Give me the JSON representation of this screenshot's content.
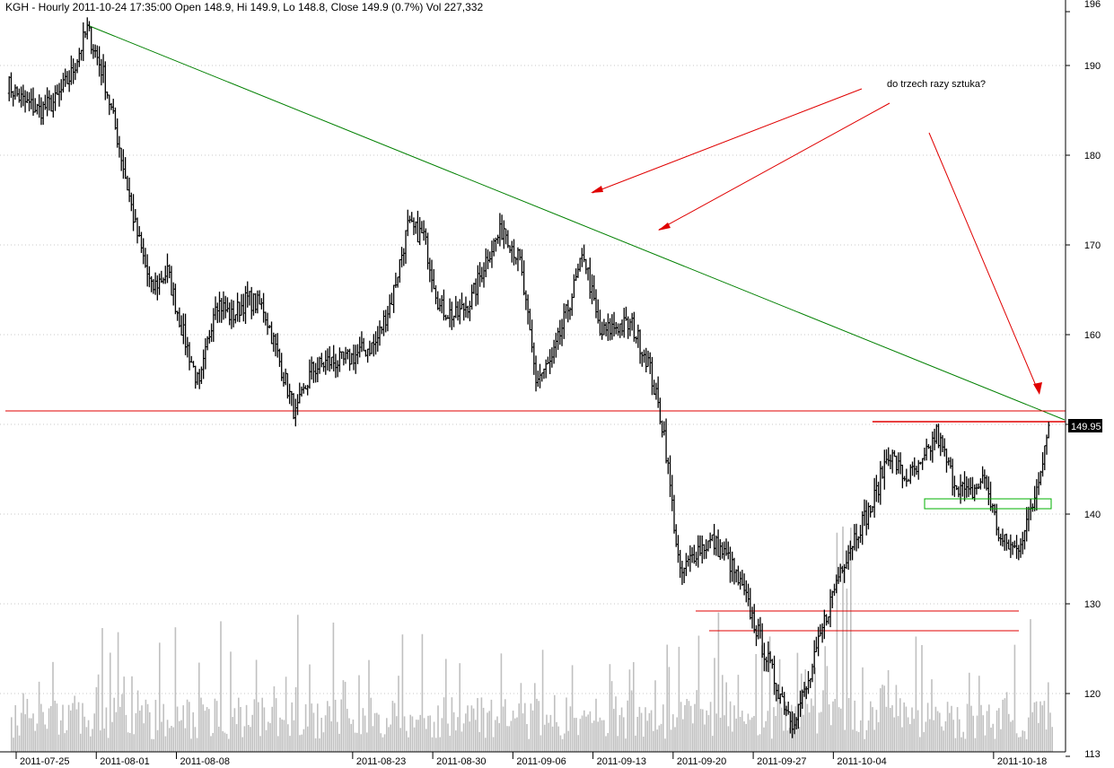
{
  "header": {
    "title": "KGH - Hourly 2011-10-24 17:35:00 Open 148.9, Hi 149.9, Lo 148.8, Close 149.9 (0.7%) Vol 227,332"
  },
  "annotation": {
    "text": "do trzech razy sztuka?"
  },
  "colors": {
    "background": "#ffffff",
    "price_bar": "#000000",
    "volume_bar": "#c0c0c0",
    "grid": "#c8c8c8",
    "trend_line": "#008000",
    "support_line": "#e00000",
    "arrow": "#e00000",
    "box": "#00b000",
    "last_price_bg": "#000000"
  },
  "chart_data": {
    "type": "ohlc",
    "ticker": "KGH",
    "interval": "Hourly",
    "y_axis": {
      "range": [
        113,
        196
      ],
      "ticks": [
        "196",
        "190",
        "180",
        "170",
        "160",
        "150",
        "140",
        "130",
        "120",
        "113"
      ],
      "side": "right"
    },
    "x_axis": {
      "date_labels": [
        "2011-07-25",
        "2011-08-01",
        "2011-08-08",
        "2011-08-23",
        "2011-08-30",
        "2011-09-06",
        "2011-09-13",
        "2011-09-20",
        "2011-09-27",
        "2011-10-04",
        "2011-10-18"
      ]
    },
    "grid": "horizontal dotted",
    "last_price": {
      "value": 149.9,
      "label": "149.95"
    },
    "price_path": [
      [
        "2011-07-25",
        188
      ],
      [
        "2011-07-26",
        186
      ],
      [
        "2011-07-27",
        185
      ],
      [
        "2011-07-28",
        186
      ],
      [
        "2011-07-29",
        189
      ],
      [
        "2011-08-01",
        194
      ],
      [
        "2011-08-02",
        189
      ],
      [
        "2011-08-03",
        181
      ],
      [
        "2011-08-04",
        172
      ],
      [
        "2011-08-05",
        165
      ],
      [
        "2011-08-08",
        167
      ],
      [
        "2011-08-09",
        160
      ],
      [
        "2011-08-10",
        154
      ],
      [
        "2011-08-11",
        164
      ],
      [
        "2011-08-12",
        162
      ],
      [
        "2011-08-15",
        164
      ],
      [
        "2011-08-16",
        163
      ],
      [
        "2011-08-17",
        157
      ],
      [
        "2011-08-18",
        151
      ],
      [
        "2011-08-19",
        156
      ],
      [
        "2011-08-22",
        157
      ],
      [
        "2011-08-23",
        157
      ],
      [
        "2011-08-24",
        158
      ],
      [
        "2011-08-25",
        159
      ],
      [
        "2011-08-26",
        164
      ],
      [
        "2011-08-29",
        172
      ],
      [
        "2011-08-30",
        171
      ],
      [
        "2011-08-31",
        163
      ],
      [
        "2011-09-01",
        162
      ],
      [
        "2011-09-02",
        164
      ],
      [
        "2011-09-05",
        169
      ],
      [
        "2011-09-06",
        172
      ],
      [
        "2011-09-07",
        168
      ],
      [
        "2011-09-08",
        155
      ],
      [
        "2011-09-09",
        157
      ],
      [
        "2011-09-12",
        163
      ],
      [
        "2011-09-13",
        169
      ],
      [
        "2011-09-14",
        160
      ],
      [
        "2011-09-15",
        161
      ],
      [
        "2011-09-16",
        161
      ],
      [
        "2011-09-19",
        157
      ],
      [
        "2011-09-20",
        149
      ],
      [
        "2011-09-21",
        133
      ],
      [
        "2011-09-22",
        136
      ],
      [
        "2011-09-23",
        137
      ],
      [
        "2011-09-26",
        135
      ],
      [
        "2011-09-27",
        131
      ],
      [
        "2011-09-28",
        126
      ],
      [
        "2011-09-29",
        121
      ],
      [
        "2011-09-30",
        117
      ],
      [
        "2011-10-03",
        121
      ],
      [
        "2011-10-04",
        128
      ],
      [
        "2011-10-05",
        134
      ],
      [
        "2011-10-06",
        138
      ],
      [
        "2011-10-07",
        141
      ],
      [
        "2011-10-10",
        147
      ],
      [
        "2011-10-11",
        144
      ],
      [
        "2011-10-12",
        145
      ],
      [
        "2011-10-13",
        149
      ],
      [
        "2011-10-14",
        144
      ],
      [
        "2011-10-17",
        142
      ],
      [
        "2011-10-18",
        144
      ],
      [
        "2011-10-19",
        137
      ],
      [
        "2011-10-20",
        136
      ],
      [
        "2011-10-21",
        141
      ],
      [
        "2011-10-24",
        149.9
      ]
    ],
    "volume_range": [
      0,
      290000
    ],
    "lines": {
      "trend": {
        "from": [
          "2011-08-01",
          194.5
        ],
        "to": [
          "2011-10-24",
          150.5
        ]
      },
      "support_150": {
        "value": 151.5
      },
      "resistance_150": {
        "value": 150.3,
        "from": "2011-10-07"
      },
      "support_129": {
        "value": 129.2
      },
      "support_127": {
        "value": 127
      }
    }
  }
}
